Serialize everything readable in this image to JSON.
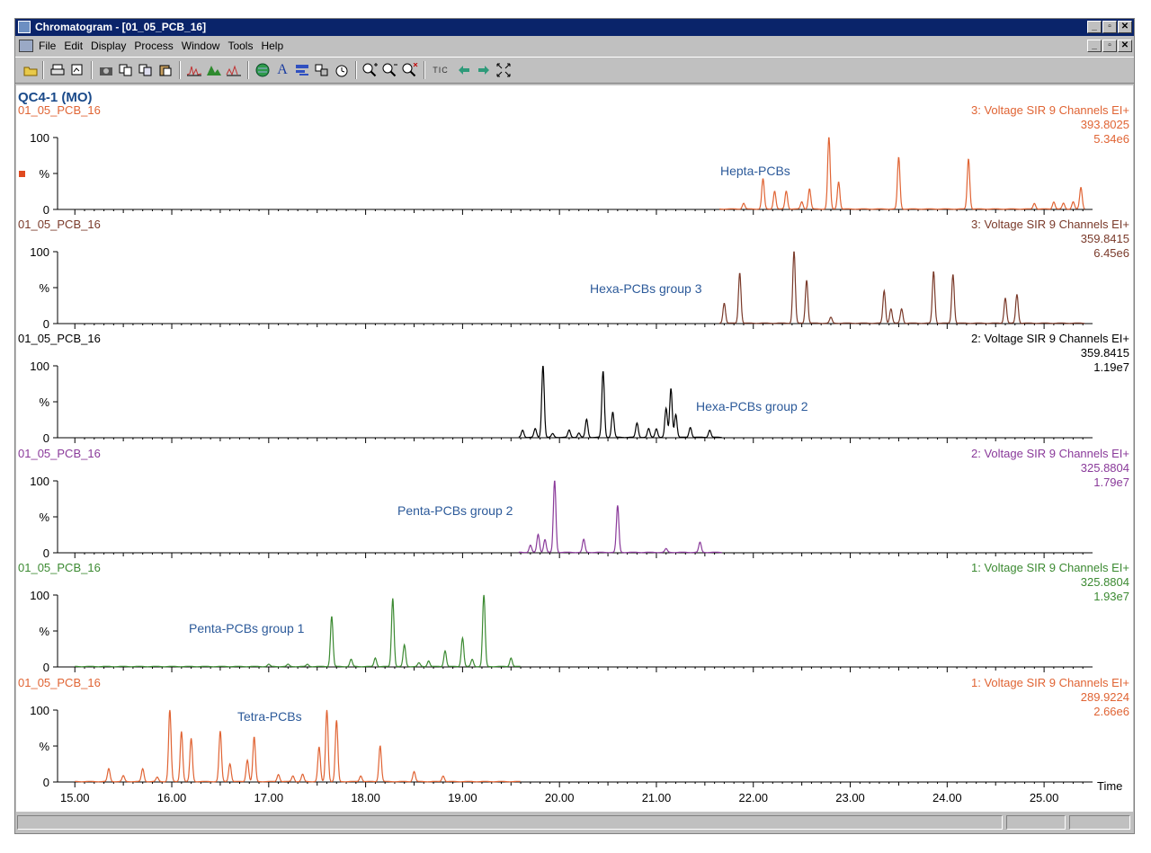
{
  "window": {
    "title": "Chromatogram - [01_05_PCB_16]",
    "buttons": [
      "_",
      "▫",
      "✕"
    ]
  },
  "menu": {
    "items": [
      "File",
      "Edit",
      "Display",
      "Process",
      "Window",
      "Tools",
      "Help"
    ]
  },
  "toolbar": {
    "icons": [
      "open-icon",
      "print-icon",
      "print-preview-icon",
      "camera-icon",
      "copy-icon",
      "copy-list-icon",
      "paste-icon",
      "chromatogram-icon",
      "peak-icon",
      "integrate-icon",
      "globe-icon",
      "text-label-icon",
      "layout-icon",
      "combine-icon",
      "clock-icon",
      "zoom-in-icon",
      "zoom-out-icon",
      "zoom-reset-icon",
      "arrow-left-icon",
      "arrow-right-icon",
      "fit-all-icon"
    ],
    "tic_label": "TIC"
  },
  "sample_title": "QC4-1 (MO)",
  "chart_data": {
    "type": "line",
    "xlabel": "Time",
    "xlim": [
      14.84,
      25.5
    ],
    "x_ticks": [
      "15.00",
      "16.00",
      "17.00",
      "18.00",
      "19.00",
      "20.00",
      "21.00",
      "22.00",
      "23.00",
      "24.00",
      "25.00"
    ],
    "y_ticks": [
      "100",
      "%",
      "0"
    ],
    "panels": [
      {
        "filename": "01_05_PCB_16",
        "function": "3: Voltage SIR 9 Channels EI+",
        "mass": "393.8025",
        "intensity": "5.34e6",
        "annotation": "Hepta-PCBs",
        "color": "#e06434",
        "range": [
          21.65,
          25.42
        ],
        "peaks": [
          [
            21.9,
            8
          ],
          [
            22.1,
            42
          ],
          [
            22.22,
            25
          ],
          [
            22.34,
            25
          ],
          [
            22.5,
            10
          ],
          [
            22.58,
            28
          ],
          [
            22.78,
            100
          ],
          [
            22.88,
            38
          ],
          [
            23.5,
            72
          ],
          [
            24.22,
            70
          ],
          [
            24.9,
            8
          ],
          [
            25.1,
            10
          ],
          [
            25.2,
            8
          ],
          [
            25.3,
            10
          ],
          [
            25.38,
            30
          ]
        ]
      },
      {
        "filename": "01_05_PCB_16",
        "function": "3: Voltage SIR 9 Channels EI+",
        "mass": "359.8415",
        "intensity": "6.45e6",
        "annotation": "Hexa-PCBs group 3",
        "color": "#7a3a2a",
        "range": [
          21.65,
          25.42
        ],
        "peaks": [
          [
            21.7,
            28
          ],
          [
            21.86,
            70
          ],
          [
            22.42,
            100
          ],
          [
            22.55,
            60
          ],
          [
            22.8,
            8
          ],
          [
            23.35,
            45
          ],
          [
            23.42,
            20
          ],
          [
            23.53,
            20
          ],
          [
            23.86,
            72
          ],
          [
            24.06,
            68
          ],
          [
            24.6,
            35
          ],
          [
            24.72,
            40
          ]
        ]
      },
      {
        "filename": "01_05_PCB_16",
        "function": "2: Voltage SIR 9 Channels EI+",
        "mass": "359.8415",
        "intensity": "1.19e7",
        "annotation": "Hexa-PCBs group 2",
        "color": "#000000",
        "range": [
          19.58,
          21.68
        ],
        "peaks": [
          [
            19.62,
            10
          ],
          [
            19.75,
            12
          ],
          [
            19.83,
            100
          ],
          [
            19.93,
            5
          ],
          [
            20.1,
            10
          ],
          [
            20.2,
            6
          ],
          [
            20.28,
            25
          ],
          [
            20.45,
            92
          ],
          [
            20.55,
            35
          ],
          [
            20.8,
            20
          ],
          [
            20.92,
            12
          ],
          [
            21.0,
            12
          ],
          [
            21.1,
            40
          ],
          [
            21.15,
            68
          ],
          [
            21.2,
            32
          ],
          [
            21.35,
            14
          ],
          [
            21.55,
            10
          ]
        ]
      },
      {
        "filename": "01_05_PCB_16",
        "function": "2: Voltage SIR 9 Channels EI+",
        "mass": "325.8804",
        "intensity": "1.79e7",
        "annotation": "Penta-PCBs group 2",
        "color": "#8a3a9a",
        "range": [
          19.58,
          21.68
        ],
        "peaks": [
          [
            19.7,
            10
          ],
          [
            19.78,
            25
          ],
          [
            19.85,
            18
          ],
          [
            19.95,
            100
          ],
          [
            20.25,
            18
          ],
          [
            20.6,
            65
          ],
          [
            21.1,
            5
          ],
          [
            21.45,
            14
          ]
        ]
      },
      {
        "filename": "01_05_PCB_16",
        "function": "1: Voltage SIR 9 Channels EI+",
        "mass": "325.8804",
        "intensity": "1.93e7",
        "annotation": "Penta-PCBs group 1",
        "color": "#3c8a32",
        "range": [
          15.0,
          19.6
        ],
        "peaks": [
          [
            17.0,
            3
          ],
          [
            17.2,
            3
          ],
          [
            17.4,
            3
          ],
          [
            17.65,
            70
          ],
          [
            17.85,
            10
          ],
          [
            18.1,
            12
          ],
          [
            18.28,
            95
          ],
          [
            18.4,
            30
          ],
          [
            18.55,
            5
          ],
          [
            18.65,
            8
          ],
          [
            18.82,
            22
          ],
          [
            19.0,
            40
          ],
          [
            19.1,
            10
          ],
          [
            19.22,
            100
          ],
          [
            19.5,
            12
          ]
        ]
      },
      {
        "filename": "01_05_PCB_16",
        "function": "1: Voltage SIR 9 Channels EI+",
        "mass": "289.9224",
        "intensity": "2.66e6",
        "annotation": "Tetra-PCBs",
        "color": "#e06434",
        "range": [
          15.0,
          19.6
        ],
        "peaks": [
          [
            15.35,
            18
          ],
          [
            15.5,
            8
          ],
          [
            15.7,
            18
          ],
          [
            15.85,
            6
          ],
          [
            15.98,
            100
          ],
          [
            16.1,
            70
          ],
          [
            16.2,
            60
          ],
          [
            16.5,
            70
          ],
          [
            16.6,
            25
          ],
          [
            16.78,
            30
          ],
          [
            16.85,
            62
          ],
          [
            17.1,
            10
          ],
          [
            17.25,
            8
          ],
          [
            17.35,
            10
          ],
          [
            17.52,
            48
          ],
          [
            17.6,
            100
          ],
          [
            17.7,
            85
          ],
          [
            17.95,
            8
          ],
          [
            18.15,
            50
          ],
          [
            18.5,
            14
          ],
          [
            18.8,
            8
          ]
        ]
      }
    ]
  }
}
